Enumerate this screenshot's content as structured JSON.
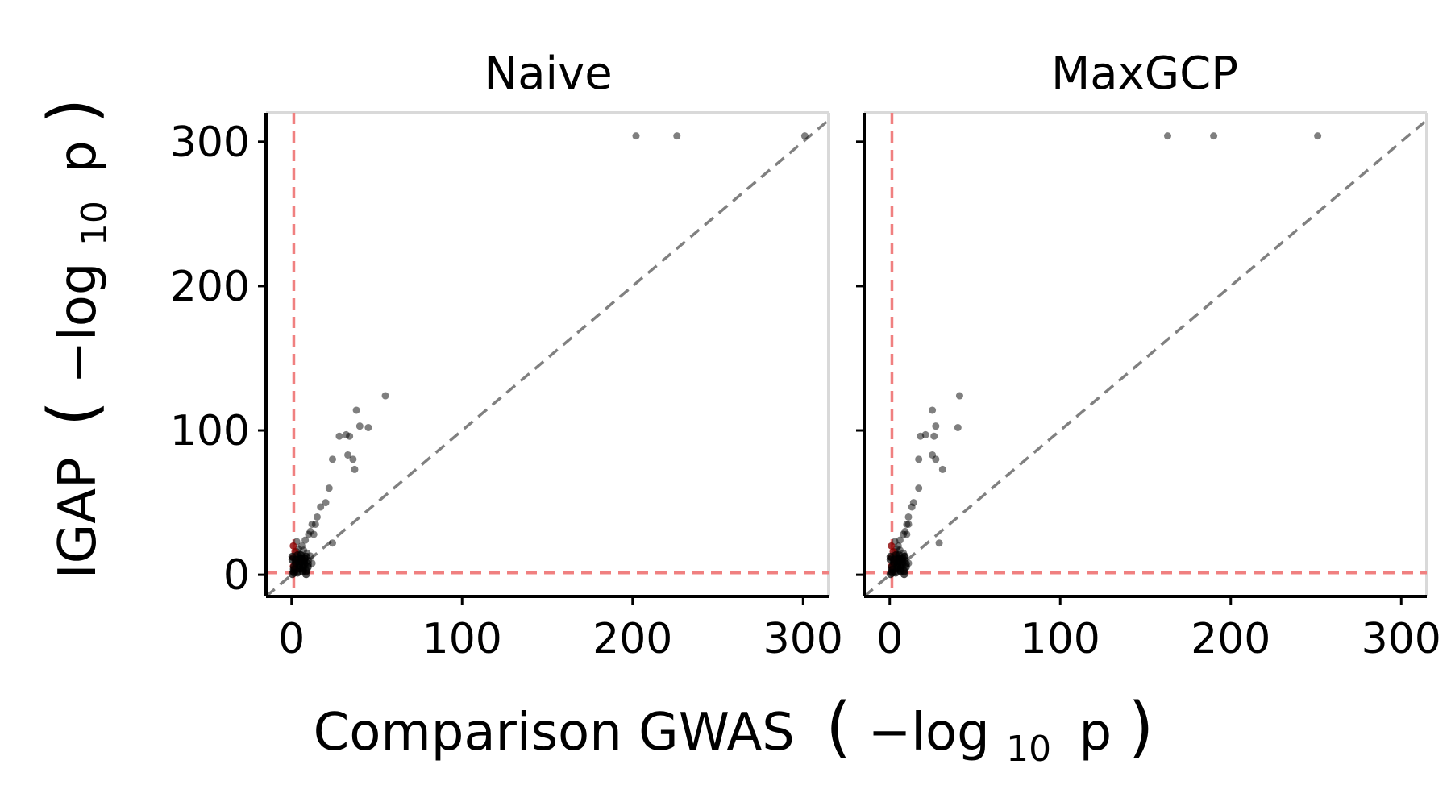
{
  "figure": {
    "ylabel_main": "IGAP",
    "ylabel_neg": "−log",
    "ylabel_sub": "10",
    "ylabel_p": "p",
    "xlabel_main": "Comparison GWAS",
    "xlabel_neg": "−log",
    "xlabel_sub": "10",
    "xlabel_p": "p"
  },
  "colors": {
    "points": "#000000",
    "threshold_line": "#f08080",
    "diagonal_line": "#808080",
    "frame": "#d9d9d9",
    "axis": "#000000",
    "significant_points": "#8b0000"
  },
  "chart_data": [
    {
      "type": "scatter",
      "title": "Naive",
      "xlabel": "Comparison GWAS (−log10 p)",
      "ylabel": "IGAP (−log10 p)",
      "xlim": [
        -15,
        315
      ],
      "ylim": [
        -15,
        320
      ],
      "xticks": [
        0,
        100,
        200,
        300
      ],
      "yticks": [
        0,
        100,
        200,
        300
      ],
      "threshold": 1.3,
      "diagonal": true,
      "grid": false,
      "points": [
        [
          202,
          304
        ],
        [
          226,
          304
        ],
        [
          301,
          304
        ],
        [
          55,
          124
        ],
        [
          38,
          114
        ],
        [
          40,
          103
        ],
        [
          45,
          102
        ],
        [
          32,
          97
        ],
        [
          28,
          96
        ],
        [
          34,
          96
        ],
        [
          33,
          83
        ],
        [
          36,
          80
        ],
        [
          24,
          80
        ],
        [
          37,
          73
        ],
        [
          22,
          60
        ],
        [
          20,
          50
        ],
        [
          17,
          47
        ],
        [
          15,
          40
        ],
        [
          12,
          35
        ],
        [
          14,
          35
        ],
        [
          11,
          30
        ],
        [
          10,
          28
        ],
        [
          13,
          28
        ],
        [
          8,
          24
        ],
        [
          24,
          22
        ],
        [
          3,
          23
        ],
        [
          6,
          20
        ],
        [
          7,
          17
        ],
        [
          9,
          15
        ],
        [
          5,
          14
        ],
        [
          11,
          13
        ],
        [
          4,
          12
        ],
        [
          8,
          11
        ],
        [
          6,
          9
        ],
        [
          12,
          8
        ],
        [
          3,
          7
        ],
        [
          7,
          6
        ],
        [
          2,
          5
        ],
        [
          5,
          4
        ],
        [
          9,
          3
        ],
        [
          1,
          2
        ],
        [
          4,
          2
        ],
        [
          2,
          8
        ],
        [
          6,
          12
        ],
        [
          3,
          16
        ],
        [
          1,
          4
        ],
        [
          8,
          7
        ],
        [
          10,
          10
        ],
        [
          4,
          18
        ],
        [
          7,
          3
        ]
      ],
      "significant_points": [
        [
          1,
          20
        ],
        [
          2,
          16
        ],
        [
          1,
          12
        ],
        [
          3,
          9
        ],
        [
          1,
          6
        ],
        [
          2,
          3
        ]
      ]
    },
    {
      "type": "scatter",
      "title": "MaxGCP",
      "xlabel": "Comparison GWAS (−log10 p)",
      "ylabel": "IGAP (−log10 p)",
      "xlim": [
        -15,
        315
      ],
      "ylim": [
        -15,
        320
      ],
      "xticks": [
        0,
        100,
        200,
        300
      ],
      "yticks": [
        0,
        100,
        200,
        300
      ],
      "threshold": 1.3,
      "diagonal": true,
      "grid": false,
      "points": [
        [
          163,
          304
        ],
        [
          190,
          304
        ],
        [
          251,
          304
        ],
        [
          41,
          124
        ],
        [
          25,
          114
        ],
        [
          27,
          103
        ],
        [
          40,
          102
        ],
        [
          21,
          97
        ],
        [
          18,
          96
        ],
        [
          26,
          96
        ],
        [
          25,
          83
        ],
        [
          27,
          80
        ],
        [
          17,
          80
        ],
        [
          31,
          73
        ],
        [
          17,
          60
        ],
        [
          14,
          50
        ],
        [
          13,
          47
        ],
        [
          11,
          40
        ],
        [
          10,
          35
        ],
        [
          11,
          35
        ],
        [
          9,
          30
        ],
        [
          8,
          28
        ],
        [
          10,
          28
        ],
        [
          6,
          24
        ],
        [
          29,
          22
        ],
        [
          3,
          23
        ],
        [
          5,
          20
        ],
        [
          6,
          17
        ],
        [
          8,
          15
        ],
        [
          4,
          14
        ],
        [
          9,
          13
        ],
        [
          3,
          12
        ],
        [
          7,
          11
        ],
        [
          5,
          9
        ],
        [
          11,
          8
        ],
        [
          2,
          7
        ],
        [
          6,
          6
        ],
        [
          2,
          5
        ],
        [
          4,
          4
        ],
        [
          8,
          3
        ],
        [
          1,
          2
        ],
        [
          3,
          2
        ],
        [
          2,
          8
        ],
        [
          5,
          12
        ],
        [
          3,
          16
        ],
        [
          1,
          4
        ],
        [
          7,
          7
        ],
        [
          9,
          10
        ],
        [
          4,
          18
        ],
        [
          6,
          3
        ]
      ],
      "significant_points": [
        [
          1,
          20
        ],
        [
          2,
          16
        ],
        [
          1,
          12
        ],
        [
          3,
          9
        ],
        [
          1,
          6
        ],
        [
          2,
          3
        ]
      ]
    }
  ]
}
